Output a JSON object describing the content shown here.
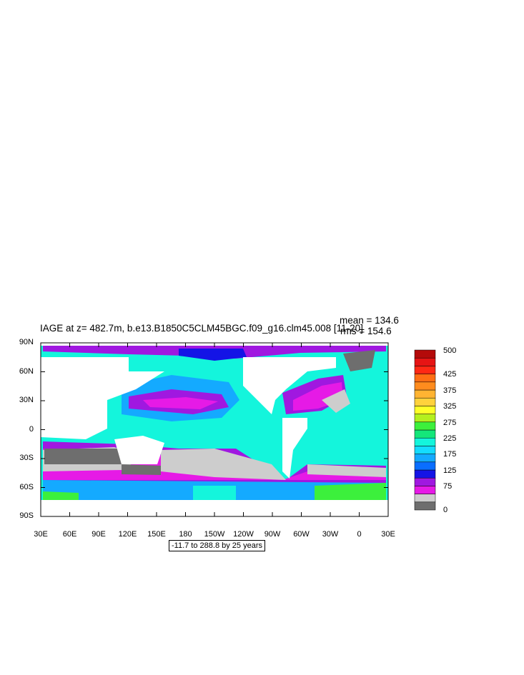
{
  "title": "IAGE at z= 482.7m, b.e13.B1850C5CLM45BGC.f09_g16.clm45.008 [11-20]",
  "stats": {
    "mean": "mean = 134.6",
    "rms": "rms = 154.6"
  },
  "lat_labels": [
    "90N",
    "60N",
    "30N",
    "0",
    "30S",
    "60S",
    "90S"
  ],
  "lon_labels": [
    "30E",
    "60E",
    "90E",
    "120E",
    "150E",
    "180",
    "150W",
    "120W",
    "90W",
    "60W",
    "30W",
    "0",
    "30E"
  ],
  "range_text": "-11.7 to 288.8 by 25 years",
  "colorbar": {
    "labels": [
      "500",
      "425",
      "375",
      "325",
      "275",
      "225",
      "175",
      "125",
      "75",
      "0"
    ],
    "colors_bottom_to_top": [
      "#6e6e6e",
      "#cdcdcd",
      "#e61ae6",
      "#a018e0",
      "#1414e6",
      "#0a6eff",
      "#14aaff",
      "#14dcff",
      "#14f5dc",
      "#14e67a",
      "#3cf03c",
      "#b4f01e",
      "#ffff28",
      "#ffd23c",
      "#ffb432",
      "#ff8c1e",
      "#ff6e14",
      "#ff2814",
      "#e61414",
      "#b40a0a"
    ]
  },
  "colors": {
    "land": "#ffffff",
    "missing": "#6e6e6e",
    "lowest": "#cdcdcd",
    "magenta": "#e61ae6",
    "purple": "#a018e0",
    "blue": "#1414e6",
    "cyan": "#14f5dc",
    "lightblue": "#14aaff",
    "green": "#3cf03c"
  }
}
